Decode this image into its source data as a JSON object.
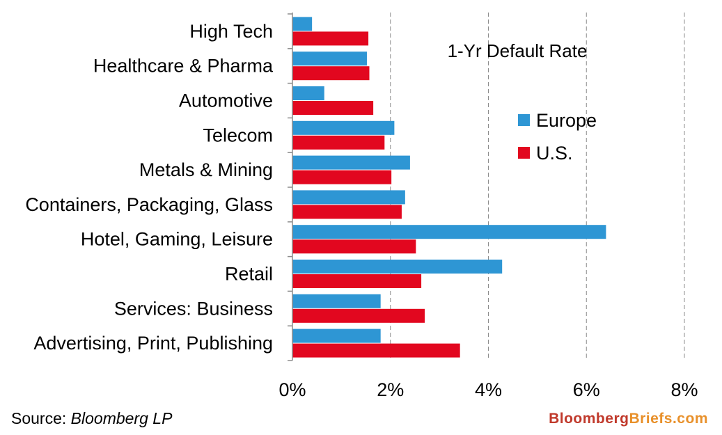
{
  "chart_data": {
    "type": "bar",
    "orientation": "horizontal",
    "title": "1-Yr Default Rate",
    "categories": [
      "High Tech",
      "Healthcare & Pharma",
      "Automotive",
      "Telecom",
      "Metals & Mining",
      "Containers, Packaging, Glass",
      "Hotel, Gaming, Leisure",
      "Retail",
      "Services: Business",
      "Advertising, Print, Publishing"
    ],
    "series": [
      {
        "name": "Europe",
        "color": "#2E96D4",
        "values": [
          0.4,
          1.52,
          0.65,
          2.08,
          2.4,
          2.3,
          6.4,
          4.28,
          1.8,
          1.8
        ]
      },
      {
        "name": "U.S.",
        "color": "#E2071F",
        "values": [
          1.55,
          1.57,
          1.65,
          1.88,
          2.02,
          2.23,
          2.52,
          2.63,
          2.7,
          3.42
        ]
      }
    ],
    "xlim": [
      0,
      8
    ],
    "xticks": [
      0,
      2,
      4,
      6,
      8
    ],
    "xtick_labels": [
      "0%",
      "2%",
      "4%",
      "6%",
      "8%"
    ],
    "grid": "vertical-dashed",
    "legend_position": "right"
  },
  "footer": {
    "source_prefix": "Source: ",
    "source_name": "Bloomberg LP",
    "brand_part1": "Bloomberg",
    "brand_part2": "Briefs.com",
    "brand_color1": "#C0392B",
    "brand_color2": "#E8902A"
  }
}
